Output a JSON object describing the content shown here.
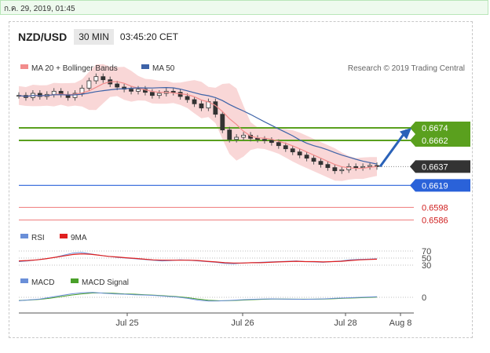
{
  "date_bar": "ก.ค. 29, 2019, 01:45",
  "header": {
    "pair": "NZD/USD",
    "timeframe": "30 MIN",
    "time": "03:45:20 CET"
  },
  "copyright": "Research © 2019 Trading Central",
  "colors": {
    "ma20": "#f28c8c",
    "bollinger_fill": "#f9d7d7",
    "ma50": "#3d63a8",
    "resistance": "#5aa01e",
    "pivot": "#2a62d9",
    "support": "#ef7a7a",
    "current": "#333333",
    "arrow": "#2a62b8",
    "rsi": "#6a8fd8",
    "rsi_ma": "#e02020",
    "macd": "#6a8fd8",
    "macd_signal": "#4aa02a"
  },
  "chart_data": [
    {
      "type": "candlestick",
      "legend": [
        {
          "name": "MA 20 + Bollinger Bands"
        },
        {
          "name": "MA 50"
        }
      ],
      "x_ticks": [
        "Jul 25",
        "Jul 26",
        "Jul 28",
        "Aug 8"
      ],
      "close_series": [
        0.6705,
        0.6703,
        0.6707,
        0.6704,
        0.6706,
        0.6709,
        0.6706,
        0.6703,
        0.6707,
        0.6712,
        0.6719,
        0.6723,
        0.672,
        0.6716,
        0.6713,
        0.6711,
        0.6709,
        0.6711,
        0.6708,
        0.6705,
        0.6707,
        0.6709,
        0.6708,
        0.6704,
        0.6701,
        0.6697,
        0.6693,
        0.6699,
        0.6687,
        0.6672,
        0.6663,
        0.6665,
        0.6667,
        0.6664,
        0.6663,
        0.6662,
        0.666,
        0.6657,
        0.6654,
        0.6651,
        0.6648,
        0.6645,
        0.6642,
        0.6639,
        0.6636,
        0.6633,
        0.6634,
        0.6637,
        0.6636,
        0.6637,
        0.6638,
        0.6637
      ],
      "levels": [
        {
          "label": "0.6674",
          "kind": "resistance"
        },
        {
          "label": "0.6662",
          "kind": "resistance"
        },
        {
          "label": "0.6637",
          "kind": "current"
        },
        {
          "label": "0.6619",
          "kind": "pivot"
        },
        {
          "label": "0.6598",
          "kind": "support"
        },
        {
          "label": "0.6586",
          "kind": "support"
        }
      ]
    },
    {
      "type": "line",
      "legend": [
        {
          "name": "RSI"
        },
        {
          "name": "9MA"
        }
      ],
      "y_ticks": [
        "70",
        "50",
        "30"
      ],
      "rsi": [
        40,
        42,
        45,
        48,
        52,
        58,
        64,
        66,
        62,
        58,
        55,
        52,
        50,
        48,
        46,
        44,
        42,
        43,
        45,
        44,
        42,
        40,
        38,
        35,
        34,
        36,
        37,
        38,
        39,
        40,
        41,
        42,
        40,
        39,
        38,
        40,
        42,
        45,
        46,
        47,
        48
      ],
      "rsi_ma": [
        42,
        43,
        45,
        48,
        52,
        56,
        60,
        62,
        61,
        58,
        55,
        53,
        51,
        49,
        47,
        45,
        44,
        44,
        44,
        44,
        43,
        41,
        39,
        37,
        36,
        36,
        37,
        37,
        38,
        39,
        40,
        41,
        40,
        40,
        39,
        40,
        41,
        43,
        45,
        46,
        47
      ]
    },
    {
      "type": "line",
      "legend": [
        {
          "name": "MACD"
        },
        {
          "name": "MACD Signal"
        }
      ],
      "y_ticks": [
        "0"
      ],
      "macd": [
        -2,
        -1.5,
        -1,
        0,
        1,
        2,
        2.6,
        2.8,
        2.4,
        2,
        1.8,
        1.5,
        1.3,
        1,
        0.6,
        0.2,
        -0.6,
        -1.6,
        -2.2,
        -2.1,
        -1.8,
        -1.5,
        -1.2,
        -1,
        -0.9,
        -1,
        -1.1,
        -1.2,
        -1.1,
        -0.9,
        -0.6,
        -0.3,
        -0.1,
        0.1,
        0.3
      ],
      "signal": [
        -1.8,
        -1.6,
        -1.2,
        -0.5,
        0.4,
        1.3,
        2,
        2.5,
        2.5,
        2.3,
        2,
        1.8,
        1.5,
        1.2,
        0.8,
        0.4,
        -0.2,
        -1,
        -1.7,
        -2,
        -1.9,
        -1.7,
        -1.4,
        -1.2,
        -1,
        -1,
        -1.1,
        -1.1,
        -1.1,
        -1,
        -0.8,
        -0.5,
        -0.3,
        -0.1,
        0.1
      ]
    }
  ]
}
